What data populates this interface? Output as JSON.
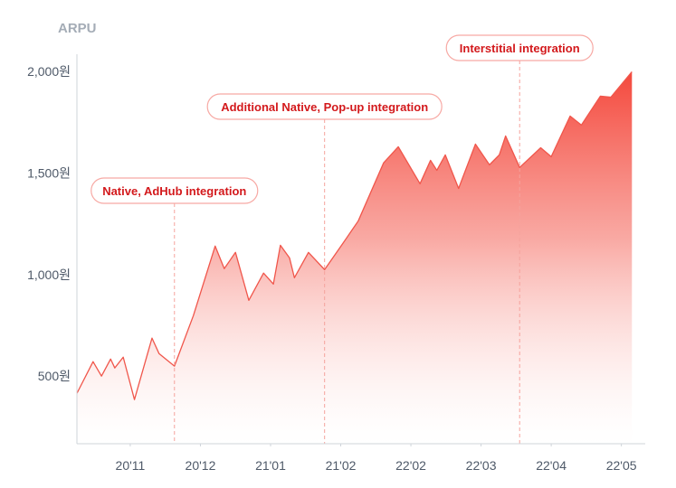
{
  "chart_data": {
    "type": "area",
    "title": "",
    "ylabel": "ARPU",
    "xlabel": "",
    "x_unit_note": "x measured in tick intervals, 0 = 20'11",
    "xlim": [
      -0.76,
      7.34
    ],
    "ylim": [
      167,
      2000
    ],
    "grid": false,
    "x_ticks": [
      {
        "x": 0,
        "label": "20'11"
      },
      {
        "x": 1,
        "label": "20'12"
      },
      {
        "x": 2,
        "label": "21'01"
      },
      {
        "x": 3,
        "label": "21'02"
      },
      {
        "x": 4,
        "label": "22'02"
      },
      {
        "x": 5,
        "label": "22'03"
      },
      {
        "x": 6,
        "label": "22'04"
      },
      {
        "x": 7,
        "label": "22'05"
      }
    ],
    "y_ticks": [
      {
        "y": 500,
        "label": "500원"
      },
      {
        "y": 1000,
        "label": "1,000원"
      },
      {
        "y": 1500,
        "label": "1,500원"
      },
      {
        "y": 2000,
        "label": "2,000원"
      }
    ],
    "series": [
      {
        "name": "ARPU",
        "x": [
          -0.76,
          -0.53,
          -0.41,
          -0.28,
          -0.22,
          -0.1,
          0.06,
          0.31,
          0.41,
          0.63,
          0.9,
          1.21,
          1.34,
          1.5,
          1.69,
          1.9,
          2.04,
          2.14,
          2.27,
          2.34,
          2.54,
          2.77,
          3.03,
          3.25,
          3.61,
          3.82,
          4.13,
          4.28,
          4.37,
          4.49,
          4.68,
          4.92,
          5.12,
          5.26,
          5.35,
          5.55,
          5.85,
          6.0,
          6.27,
          6.43,
          6.7,
          6.85,
          7.15
        ],
        "y": [
          415,
          571,
          500,
          584,
          540,
          593,
          384,
          687,
          611,
          549,
          798,
          1140,
          1029,
          1109,
          873,
          1007,
          953,
          1144,
          1082,
          984,
          1109,
          1024,
          1153,
          1264,
          1549,
          1629,
          1447,
          1562,
          1513,
          1589,
          1424,
          1642,
          1540,
          1589,
          1682,
          1527,
          1624,
          1580,
          1780,
          1736,
          1878,
          1873,
          1998
        ]
      }
    ],
    "annotations": [
      {
        "x": 0.63,
        "label": "Native, AdHub integration"
      },
      {
        "x": 2.77,
        "label": "Additional Native, Pop-up integration"
      },
      {
        "x": 5.55,
        "label": "Interstitial integration"
      }
    ],
    "colors": {
      "line": "#f0564b",
      "fill_top": "#f4483c",
      "annotation_text": "#d3191c",
      "annotation_border": "#f7a9a4",
      "tick_text": "#4e5968",
      "axis": "#cfd4da"
    }
  }
}
